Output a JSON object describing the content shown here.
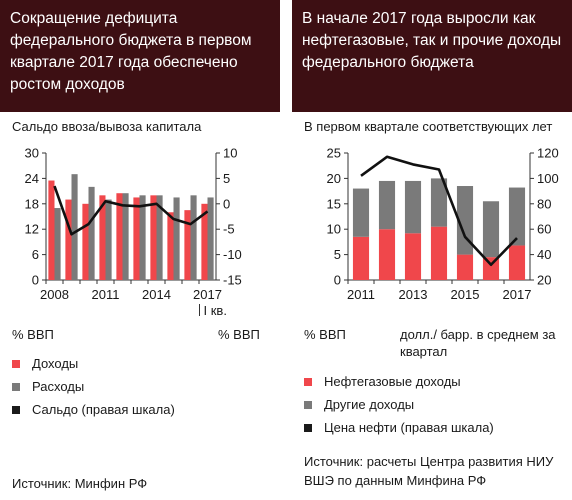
{
  "left": {
    "title": "Сокращение дефицита федерального бюджета в первом квартале 2017 года обеспечено ростом доходов",
    "subtitle": "Сальдо ввоза/вывоза капитала",
    "unit_left": "% ВВП",
    "unit_right": "% ВВП",
    "legend": [
      {
        "label": "Доходы",
        "color": "#f0474b"
      },
      {
        "label": "Расходы",
        "color": "#7a7a7a"
      },
      {
        "label": "Сальдо (правая шкала)",
        "color": "#1a1a1a"
      }
    ],
    "source": "Источник:  Минфин РФ"
  },
  "right": {
    "title": "В начале 2017 года выросли как нефтегазовые, так и прочие доходы федерального бюджета",
    "subtitle": "В первом квартале соответствующих лет",
    "unit_left": "% ВВП",
    "unit_right": "долл./ барр. в среднем за квартал",
    "legend": [
      {
        "label": "Нефтегазовые доходы",
        "color": "#f0474b"
      },
      {
        "label": "Другие доходы",
        "color": "#7a7a7a"
      },
      {
        "label": "Цена нефти (правая шкала)",
        "color": "#1a1a1a"
      }
    ],
    "source": "Источник: расчеты Центра развития НИУ ВШЭ по данным Минфина РФ"
  },
  "chart_data": [
    {
      "type": "bar",
      "x": [
        2008,
        2009,
        2010,
        2011,
        2012,
        2013,
        2014,
        2015,
        2016,
        2017
      ],
      "x_tick_labels": [
        "2008",
        "2011",
        "2014",
        "2017"
      ],
      "x_tick_positions": [
        2008,
        2011,
        2014,
        2017
      ],
      "x_annotation": "I кв.",
      "series": [
        {
          "name": "Доходы",
          "axis": "left",
          "values": [
            23.5,
            19.0,
            18.0,
            20.0,
            20.5,
            19.5,
            20.0,
            16.0,
            16.5,
            18.0
          ]
        },
        {
          "name": "Расходы",
          "axis": "left",
          "values": [
            17.0,
            25.0,
            22.0,
            19.0,
            20.5,
            20.0,
            20.0,
            19.5,
            20.0,
            19.5
          ]
        },
        {
          "name": "Сальдо (правая шкала)",
          "axis": "right",
          "type": "line",
          "values": [
            3.5,
            -6.0,
            -4.0,
            0.5,
            -0.3,
            -0.5,
            0.0,
            -3.0,
            -4.0,
            -1.5
          ]
        }
      ],
      "y_left": {
        "ylim": [
          0,
          30
        ],
        "ticks": [
          0,
          6,
          12,
          18,
          24,
          30
        ]
      },
      "y_right": {
        "ylim": [
          -15,
          10
        ],
        "ticks": [
          -15,
          -10,
          -5,
          0,
          5,
          10
        ]
      },
      "grid": false
    },
    {
      "type": "bar",
      "stacked": true,
      "x": [
        2011,
        2012,
        2013,
        2014,
        2015,
        2016,
        2017
      ],
      "x_tick_labels": [
        "2011",
        "2013",
        "2015",
        "2017"
      ],
      "x_tick_positions": [
        2011,
        2013,
        2015,
        2017
      ],
      "series": [
        {
          "name": "Нефтегазовые доходы",
          "axis": "left",
          "values": [
            8.5,
            10.0,
            9.2,
            10.5,
            5.0,
            4.5,
            6.8
          ]
        },
        {
          "name": "Другие доходы",
          "axis": "left",
          "values": [
            9.5,
            9.5,
            10.3,
            9.5,
            13.5,
            11.0,
            11.4
          ]
        },
        {
          "name": "Цена нефти (правая шкала)",
          "axis": "right",
          "type": "line",
          "values": [
            102,
            117,
            111,
            107,
            54,
            32,
            53
          ]
        }
      ],
      "y_left": {
        "ylim": [
          0,
          25
        ],
        "ticks": [
          0,
          5,
          10,
          15,
          20,
          25
        ]
      },
      "y_right": {
        "ylim": [
          20,
          120
        ],
        "ticks": [
          20,
          40,
          60,
          80,
          100,
          120
        ]
      },
      "grid": false
    }
  ]
}
